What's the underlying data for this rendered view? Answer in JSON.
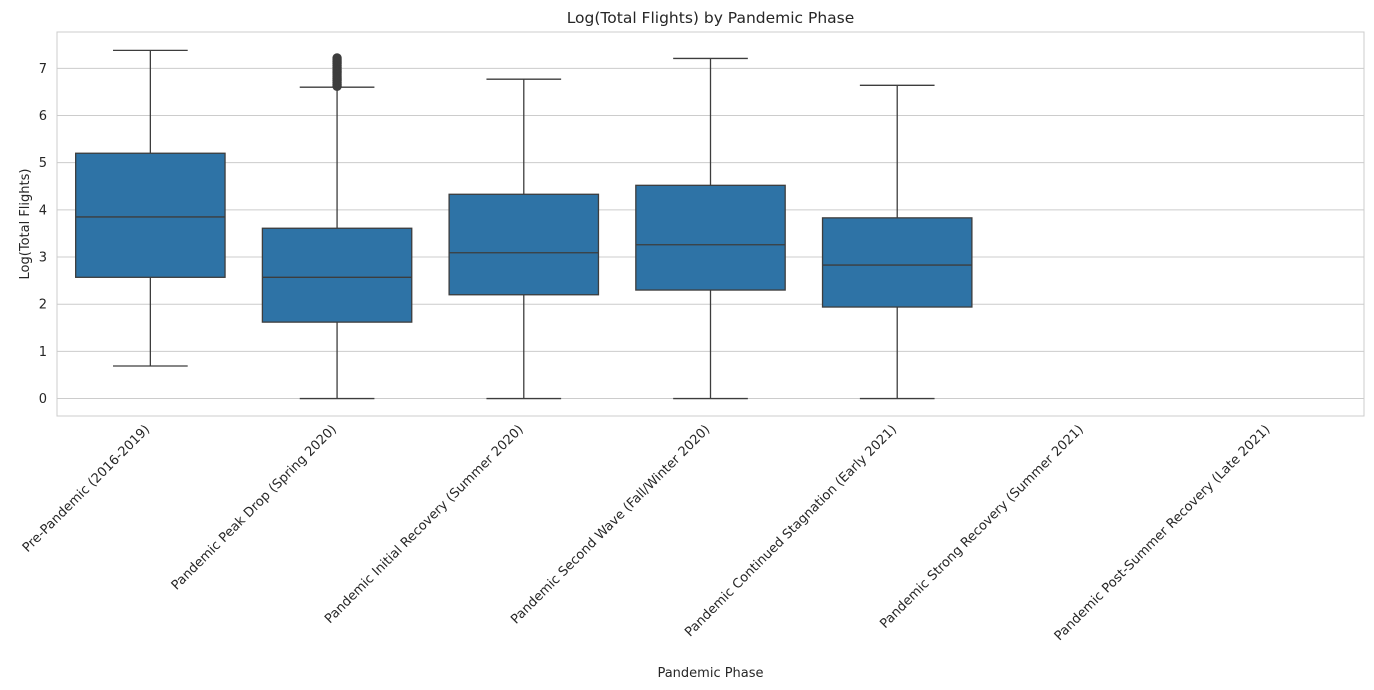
{
  "chart_data": {
    "type": "box",
    "title": "Log(Total Flights) by Pandemic Phase",
    "xlabel": "Pandemic Phase",
    "ylabel": "Log(Total Flights)",
    "ylim": [
      -0.37,
      7.77
    ],
    "yticks": [
      0,
      1,
      2,
      3,
      4,
      5,
      6,
      7
    ],
    "grid": "y",
    "box_color": "#2e73a6",
    "line_color": "#3d3d3d",
    "grid_color": "#cccccc",
    "categories": [
      "Pre-Pandemic (2016-2019)",
      "Pandemic Peak Drop (Spring 2020)",
      "Pandemic Initial Recovery (Summer 2020)",
      "Pandemic Second Wave (Fall/Winter 2020)",
      "Pandemic Continued Stagnation (Early 2021)",
      "Pandemic Strong Recovery (Summer 2021)",
      "Pandemic Post-Summer Recovery (Late 2021)"
    ],
    "boxes": [
      {
        "whisker_low": 0.69,
        "q1": 2.57,
        "median": 3.85,
        "q3": 5.2,
        "whisker_high": 7.38,
        "outliers": []
      },
      {
        "whisker_low": 0.0,
        "q1": 1.62,
        "median": 2.57,
        "q3": 3.61,
        "whisker_high": 6.6,
        "outliers": [
          6.62,
          6.66,
          6.7,
          6.74,
          6.78,
          6.82,
          6.86,
          6.9,
          6.94,
          6.98,
          7.02,
          7.06,
          7.1,
          7.14,
          7.18,
          7.22
        ]
      },
      {
        "whisker_low": 0.0,
        "q1": 2.2,
        "median": 3.09,
        "q3": 4.33,
        "whisker_high": 6.77,
        "outliers": []
      },
      {
        "whisker_low": 0.0,
        "q1": 2.3,
        "median": 3.26,
        "q3": 4.52,
        "whisker_high": 7.21,
        "outliers": []
      },
      {
        "whisker_low": 0.0,
        "q1": 1.94,
        "median": 2.83,
        "q3": 3.83,
        "whisker_high": 6.64,
        "outliers": []
      },
      null,
      null
    ]
  }
}
